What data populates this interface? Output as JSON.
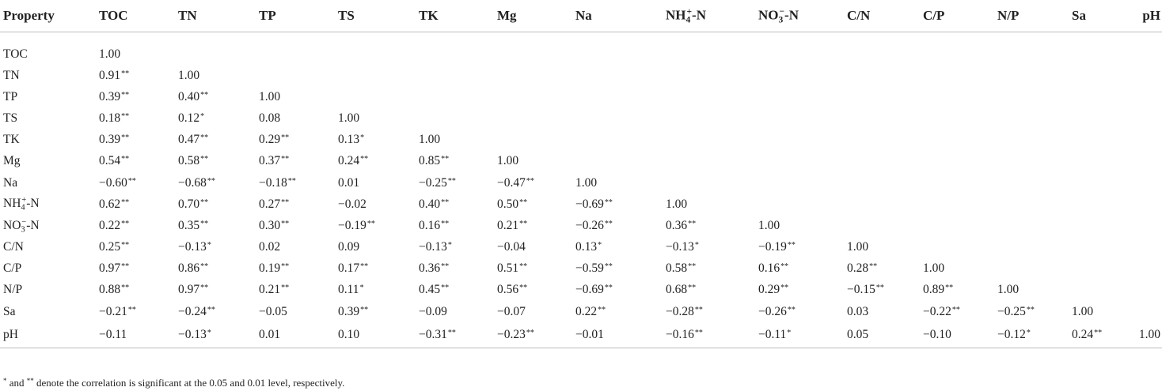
{
  "table": {
    "headers": [
      "Property",
      "TOC",
      "TN",
      "TP",
      "TS",
      "TK",
      "Mg",
      "Na",
      "NH4+-N",
      "NO3−-N",
      "C/N",
      "C/P",
      "N/P",
      "Sa",
      "pH"
    ],
    "rows": [
      {
        "label": "TOC",
        "cells": [
          "1.00"
        ]
      },
      {
        "label": "TN",
        "cells": [
          "0.91**",
          "1.00"
        ]
      },
      {
        "label": "TP",
        "cells": [
          "0.39**",
          "0.40**",
          "1.00"
        ]
      },
      {
        "label": "TS",
        "cells": [
          "0.18**",
          "0.12*",
          "0.08",
          "1.00"
        ]
      },
      {
        "label": "TK",
        "cells": [
          "0.39**",
          "0.47**",
          "0.29**",
          "0.13*",
          "1.00"
        ]
      },
      {
        "label": "Mg",
        "cells": [
          "0.54**",
          "0.58**",
          "0.37**",
          "0.24**",
          "0.85**",
          "1.00"
        ]
      },
      {
        "label": "Na",
        "cells": [
          "−0.60**",
          "−0.68**",
          "−0.18**",
          "0.01",
          "−0.25**",
          "−0.47**",
          "1.00"
        ]
      },
      {
        "label": "NH4+-N",
        "cells": [
          "0.62**",
          "0.70**",
          "0.27**",
          "−0.02",
          "0.40**",
          "0.50**",
          "−0.69**",
          "1.00"
        ]
      },
      {
        "label": "NO3−-N",
        "cells": [
          "0.22**",
          "0.35**",
          "0.30**",
          "−0.19**",
          "0.16**",
          "0.21**",
          "−0.26**",
          "0.36**",
          "1.00"
        ]
      },
      {
        "label": "C/N",
        "cells": [
          "0.25**",
          "−0.13*",
          "0.02",
          "0.09",
          "−0.13*",
          "−0.04",
          "0.13*",
          "−0.13*",
          "−0.19**",
          "1.00"
        ]
      },
      {
        "label": "C/P",
        "cells": [
          "0.97**",
          "0.86**",
          "0.19**",
          "0.17**",
          "0.36**",
          "0.51**",
          "−0.59**",
          "0.58**",
          "0.16**",
          "0.28**",
          "1.00"
        ]
      },
      {
        "label": "N/P",
        "cells": [
          "0.88**",
          "0.97**",
          "0.21**",
          "0.11*",
          "0.45**",
          "0.56**",
          "−0.69**",
          "0.68**",
          "0.29**",
          "−0.15**",
          "0.89**",
          "1.00"
        ]
      },
      {
        "label": "Sa",
        "cells": [
          "−0.21**",
          "−0.24**",
          "−0.05",
          "0.39**",
          "−0.09",
          "−0.07",
          "0.22**",
          "−0.28**",
          "−0.26**",
          "0.03",
          "−0.22**",
          "−0.25**",
          "1.00"
        ]
      },
      {
        "label": "pH",
        "cells": [
          "−0.11",
          "−0.13*",
          "0.01",
          "0.10",
          "−0.31**",
          "−0.23**",
          "−0.01",
          "−0.16**",
          "−0.11*",
          "0.05",
          "−0.10",
          "−0.12*",
          "0.24**",
          "1.00"
        ]
      }
    ]
  },
  "footnote": {
    "marker_single": "*",
    "marker_double": "**",
    "text_and": " and ",
    "text_rest": " denote the correlation is significant at the 0.05 and 0.01 level, respectively."
  }
}
